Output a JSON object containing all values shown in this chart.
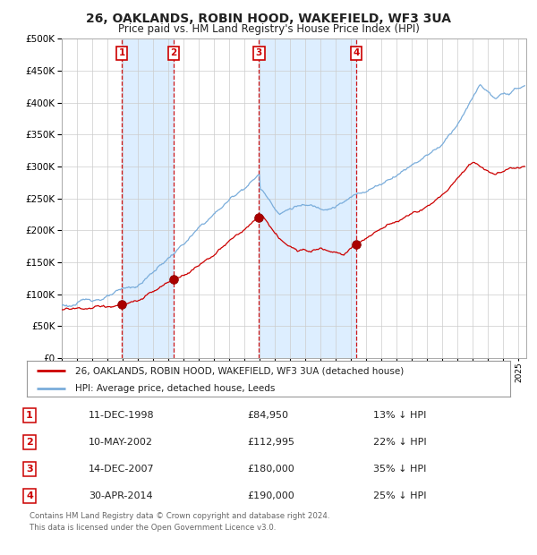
{
  "title": "26, OAKLANDS, ROBIN HOOD, WAKEFIELD, WF3 3UA",
  "subtitle": "Price paid vs. HM Land Registry's House Price Index (HPI)",
  "background_color": "#ffffff",
  "grid_color": "#cccccc",
  "hpi_color": "#7aaddb",
  "price_color": "#cc0000",
  "shade_color": "#ddeeff",
  "transactions": [
    {
      "num": 1,
      "date": "11-DEC-1998",
      "year": 1998.95,
      "price": 84950,
      "label": "£84,950",
      "pct": "13%"
    },
    {
      "num": 2,
      "date": "10-MAY-2002",
      "year": 2002.36,
      "price": 112995,
      "label": "£112,995",
      "pct": "22%"
    },
    {
      "num": 3,
      "date": "14-DEC-2007",
      "year": 2007.95,
      "price": 180000,
      "label": "£180,000",
      "pct": "35%"
    },
    {
      "num": 4,
      "date": "30-APR-2014",
      "year": 2014.33,
      "price": 190000,
      "label": "£190,000",
      "pct": "25%"
    }
  ],
  "legend_property": "26, OAKLANDS, ROBIN HOOD, WAKEFIELD, WF3 3UA (detached house)",
  "legend_hpi": "HPI: Average price, detached house, Leeds",
  "footer1": "Contains HM Land Registry data © Crown copyright and database right 2024.",
  "footer2": "This data is licensed under the Open Government Licence v3.0.",
  "ylim": [
    0,
    500000
  ],
  "yticks": [
    0,
    50000,
    100000,
    150000,
    200000,
    250000,
    300000,
    350000,
    400000,
    450000,
    500000
  ],
  "xlim_start": 1995,
  "xlim_end": 2025.5
}
